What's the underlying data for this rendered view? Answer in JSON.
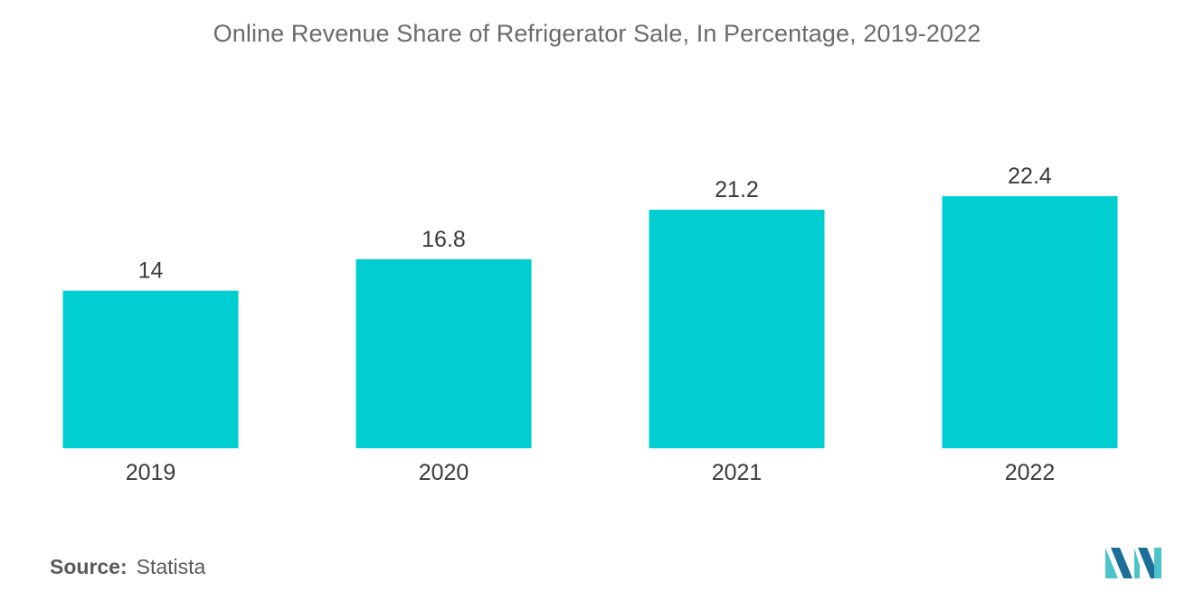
{
  "chart_data": {
    "type": "bar",
    "title": "Online Revenue Share of Refrigerator Sale, In Percentage, 2019-2022",
    "categories": [
      "2019",
      "2020",
      "2021",
      "2022"
    ],
    "values": [
      14,
      16.8,
      21.2,
      22.4
    ],
    "value_labels": [
      "14",
      "16.8",
      "21.2",
      "22.4"
    ],
    "xlabel": "",
    "ylabel": "",
    "ylim": [
      0,
      24
    ],
    "grid": false,
    "bar_color": "#00ced1"
  },
  "source": {
    "label": "Source:",
    "value": "Statista"
  },
  "logo": {
    "icon": "mordor-intelligence-logo-icon",
    "color_dark": "#1d6f9a",
    "color_light": "#4bc3c9"
  }
}
